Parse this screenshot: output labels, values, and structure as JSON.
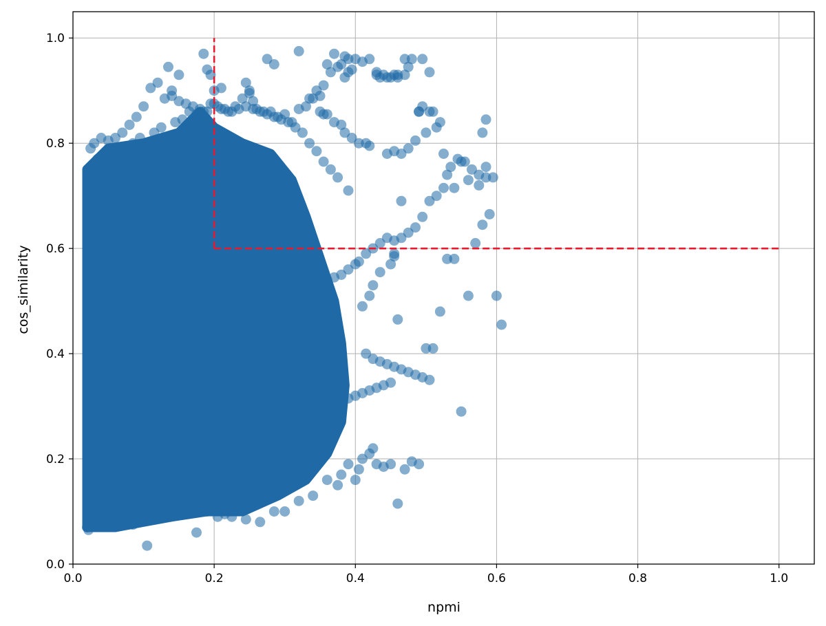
{
  "chart_data": {
    "type": "scatter",
    "title": "",
    "xlabel": "npmi",
    "ylabel": "cos_similarity",
    "xlim": [
      0.0,
      1.05
    ],
    "ylim": [
      0.0,
      1.05
    ],
    "x_ticks": [
      0.0,
      0.2,
      0.4,
      0.6,
      0.8,
      1.0
    ],
    "y_ticks": [
      0.0,
      0.2,
      0.4,
      0.6,
      0.8,
      1.0
    ],
    "x_tick_labels": [
      "0.0",
      "0.2",
      "0.4",
      "0.6",
      "0.8",
      "1.0"
    ],
    "y_tick_labels": [
      "0.0",
      "0.2",
      "0.4",
      "0.6",
      "0.8",
      "1.0"
    ],
    "grid": true,
    "legend": "none",
    "marker_color": "#1f6aa6",
    "marker_opacity": 0.55,
    "threshold_color": "#e8192c",
    "thresholds": {
      "vertical": {
        "x": 0.2,
        "y_range": [
          0.6,
          1.0
        ]
      },
      "horizontal": {
        "y": 0.6,
        "x_range": [
          0.2,
          1.0
        ]
      }
    },
    "dense_core": {
      "points": [
        [
          0.02,
          0.07
        ],
        [
          0.02,
          0.75
        ],
        [
          0.05,
          0.79
        ],
        [
          0.1,
          0.8
        ],
        [
          0.15,
          0.82
        ],
        [
          0.18,
          0.86
        ],
        [
          0.2,
          0.83
        ],
        [
          0.24,
          0.8
        ],
        [
          0.28,
          0.78
        ],
        [
          0.31,
          0.73
        ],
        [
          0.33,
          0.66
        ],
        [
          0.35,
          0.58
        ],
        [
          0.37,
          0.5
        ],
        [
          0.38,
          0.42
        ],
        [
          0.385,
          0.34
        ],
        [
          0.38,
          0.27
        ],
        [
          0.36,
          0.21
        ],
        [
          0.33,
          0.16
        ],
        [
          0.29,
          0.13
        ],
        [
          0.24,
          0.1
        ],
        [
          0.19,
          0.1
        ],
        [
          0.14,
          0.09
        ],
        [
          0.1,
          0.08
        ],
        [
          0.06,
          0.07
        ]
      ]
    },
    "series": [
      {
        "x": [
          0.105,
          0.175,
          0.022,
          0.02,
          0.03,
          0.045,
          0.06,
          0.085,
          0.095,
          0.115,
          0.13,
          0.155,
          0.165,
          0.19,
          0.205,
          0.215,
          0.225,
          0.245,
          0.265,
          0.285,
          0.3,
          0.32,
          0.34,
          0.36,
          0.375,
          0.38,
          0.39,
          0.4,
          0.405,
          0.41,
          0.42,
          0.425,
          0.43,
          0.44,
          0.45,
          0.46,
          0.47,
          0.48,
          0.49,
          0.5,
          0.51,
          0.52,
          0.53,
          0.54,
          0.55,
          0.56,
          0.57,
          0.58,
          0.59,
          0.6,
          0.607,
          0.595,
          0.585,
          0.55,
          0.52,
          0.51,
          0.49,
          0.47,
          0.455,
          0.445,
          0.435,
          0.43,
          0.42,
          0.41,
          0.4,
          0.395,
          0.39,
          0.385,
          0.38,
          0.375,
          0.37,
          0.365,
          0.36,
          0.355,
          0.35,
          0.345,
          0.34,
          0.335,
          0.33,
          0.32,
          0.31,
          0.3,
          0.29,
          0.28,
          0.27,
          0.26,
          0.25,
          0.24,
          0.23,
          0.22,
          0.21,
          0.2,
          0.19,
          0.18,
          0.17,
          0.16,
          0.15,
          0.14,
          0.13,
          0.12,
          0.11,
          0.1,
          0.09,
          0.08,
          0.07,
          0.06,
          0.05,
          0.04,
          0.03,
          0.025,
          0.135,
          0.185,
          0.19,
          0.32,
          0.385,
          0.39,
          0.43,
          0.46,
          0.47,
          0.48,
          0.495,
          0.505,
          0.475,
          0.44,
          0.45,
          0.46,
          0.275,
          0.285,
          0.245,
          0.25,
          0.255,
          0.15,
          0.14,
          0.21,
          0.195,
          0.2,
          0.35,
          0.355,
          0.36,
          0.37,
          0.38,
          0.385,
          0.395,
          0.405,
          0.415,
          0.42,
          0.445,
          0.455,
          0.465,
          0.475,
          0.485,
          0.49,
          0.495,
          0.5,
          0.505,
          0.515,
          0.525,
          0.53,
          0.535,
          0.545,
          0.555,
          0.565,
          0.575,
          0.58,
          0.585,
          0.585,
          0.575,
          0.56,
          0.54,
          0.525,
          0.515,
          0.505,
          0.495,
          0.485,
          0.475,
          0.465,
          0.455,
          0.445,
          0.435,
          0.425,
          0.415,
          0.405,
          0.4,
          0.39,
          0.38,
          0.37,
          0.36,
          0.35,
          0.34,
          0.33,
          0.325,
          0.315,
          0.305,
          0.295,
          0.285,
          0.275,
          0.265,
          0.255,
          0.235,
          0.225,
          0.215,
          0.205,
          0.415,
          0.425,
          0.435,
          0.445,
          0.455,
          0.465,
          0.475,
          0.485,
          0.495,
          0.505,
          0.45,
          0.44,
          0.43,
          0.42,
          0.41,
          0.4,
          0.39,
          0.38,
          0.37,
          0.36,
          0.35,
          0.34,
          0.45,
          0.455,
          0.46,
          0.41,
          0.42,
          0.425,
          0.435,
          0.455,
          0.465,
          0.39,
          0.375,
          0.365,
          0.355,
          0.345,
          0.335,
          0.325,
          0.315,
          0.305,
          0.295,
          0.285,
          0.275,
          0.265,
          0.255,
          0.245,
          0.235,
          0.225,
          0.215,
          0.205,
          0.195,
          0.185,
          0.175,
          0.165,
          0.155,
          0.145,
          0.125,
          0.115,
          0.095,
          0.085,
          0.075,
          0.065,
          0.055,
          0.045,
          0.035
        ],
        "y": [
          0.035,
          0.06,
          0.065,
          0.07,
          0.08,
          0.085,
          0.09,
          0.075,
          0.09,
          0.1,
          0.095,
          0.1,
          0.1,
          0.1,
          0.09,
          0.095,
          0.09,
          0.085,
          0.08,
          0.1,
          0.1,
          0.12,
          0.13,
          0.16,
          0.15,
          0.17,
          0.19,
          0.16,
          0.18,
          0.2,
          0.21,
          0.22,
          0.19,
          0.185,
          0.19,
          0.115,
          0.18,
          0.195,
          0.19,
          0.41,
          0.41,
          0.48,
          0.58,
          0.58,
          0.29,
          0.51,
          0.61,
          0.645,
          0.665,
          0.51,
          0.455,
          0.735,
          0.735,
          0.765,
          0.84,
          0.86,
          0.86,
          0.96,
          0.93,
          0.925,
          0.925,
          0.93,
          0.96,
          0.955,
          0.96,
          0.94,
          0.935,
          0.925,
          0.95,
          0.945,
          0.97,
          0.935,
          0.95,
          0.91,
          0.89,
          0.9,
          0.885,
          0.885,
          0.87,
          0.865,
          0.84,
          0.855,
          0.85,
          0.86,
          0.86,
          0.865,
          0.895,
          0.885,
          0.87,
          0.86,
          0.865,
          0.875,
          0.86,
          0.865,
          0.87,
          0.875,
          0.88,
          0.9,
          0.885,
          0.915,
          0.905,
          0.87,
          0.85,
          0.835,
          0.82,
          0.81,
          0.805,
          0.81,
          0.8,
          0.79,
          0.945,
          0.97,
          0.94,
          0.975,
          0.965,
          0.96,
          0.935,
          0.925,
          0.93,
          0.96,
          0.96,
          0.935,
          0.945,
          0.93,
          0.925,
          0.93,
          0.96,
          0.95,
          0.915,
          0.9,
          0.88,
          0.93,
          0.89,
          0.905,
          0.93,
          0.9,
          0.86,
          0.855,
          0.855,
          0.84,
          0.835,
          0.82,
          0.81,
          0.8,
          0.8,
          0.795,
          0.78,
          0.785,
          0.78,
          0.79,
          0.805,
          0.86,
          0.87,
          0.82,
          0.86,
          0.83,
          0.78,
          0.74,
          0.755,
          0.77,
          0.765,
          0.75,
          0.74,
          0.82,
          0.845,
          0.755,
          0.72,
          0.73,
          0.715,
          0.715,
          0.7,
          0.69,
          0.66,
          0.64,
          0.63,
          0.62,
          0.615,
          0.62,
          0.61,
          0.6,
          0.59,
          0.575,
          0.57,
          0.56,
          0.55,
          0.545,
          0.54,
          0.535,
          0.53,
          0.52,
          0.51,
          0.5,
          0.49,
          0.48,
          0.47,
          0.46,
          0.45,
          0.44,
          0.435,
          0.43,
          0.42,
          0.41,
          0.4,
          0.39,
          0.385,
          0.38,
          0.375,
          0.37,
          0.365,
          0.36,
          0.355,
          0.35,
          0.345,
          0.34,
          0.335,
          0.33,
          0.325,
          0.32,
          0.315,
          0.31,
          0.305,
          0.3,
          0.295,
          0.55,
          0.57,
          0.59,
          0.465,
          0.49,
          0.51,
          0.53,
          0.555,
          0.585,
          0.69,
          0.71,
          0.735,
          0.75,
          0.765,
          0.785,
          0.8,
          0.82,
          0.83,
          0.84,
          0.845,
          0.85,
          0.855,
          0.86,
          0.865,
          0.87,
          0.865,
          0.86,
          0.865,
          0.87,
          0.875,
          0.86,
          0.855,
          0.86,
          0.845,
          0.84,
          0.83,
          0.82,
          0.81,
          0.8,
          0.79,
          0.785,
          0.78,
          0.775,
          0.77
        ]
      }
    ]
  }
}
